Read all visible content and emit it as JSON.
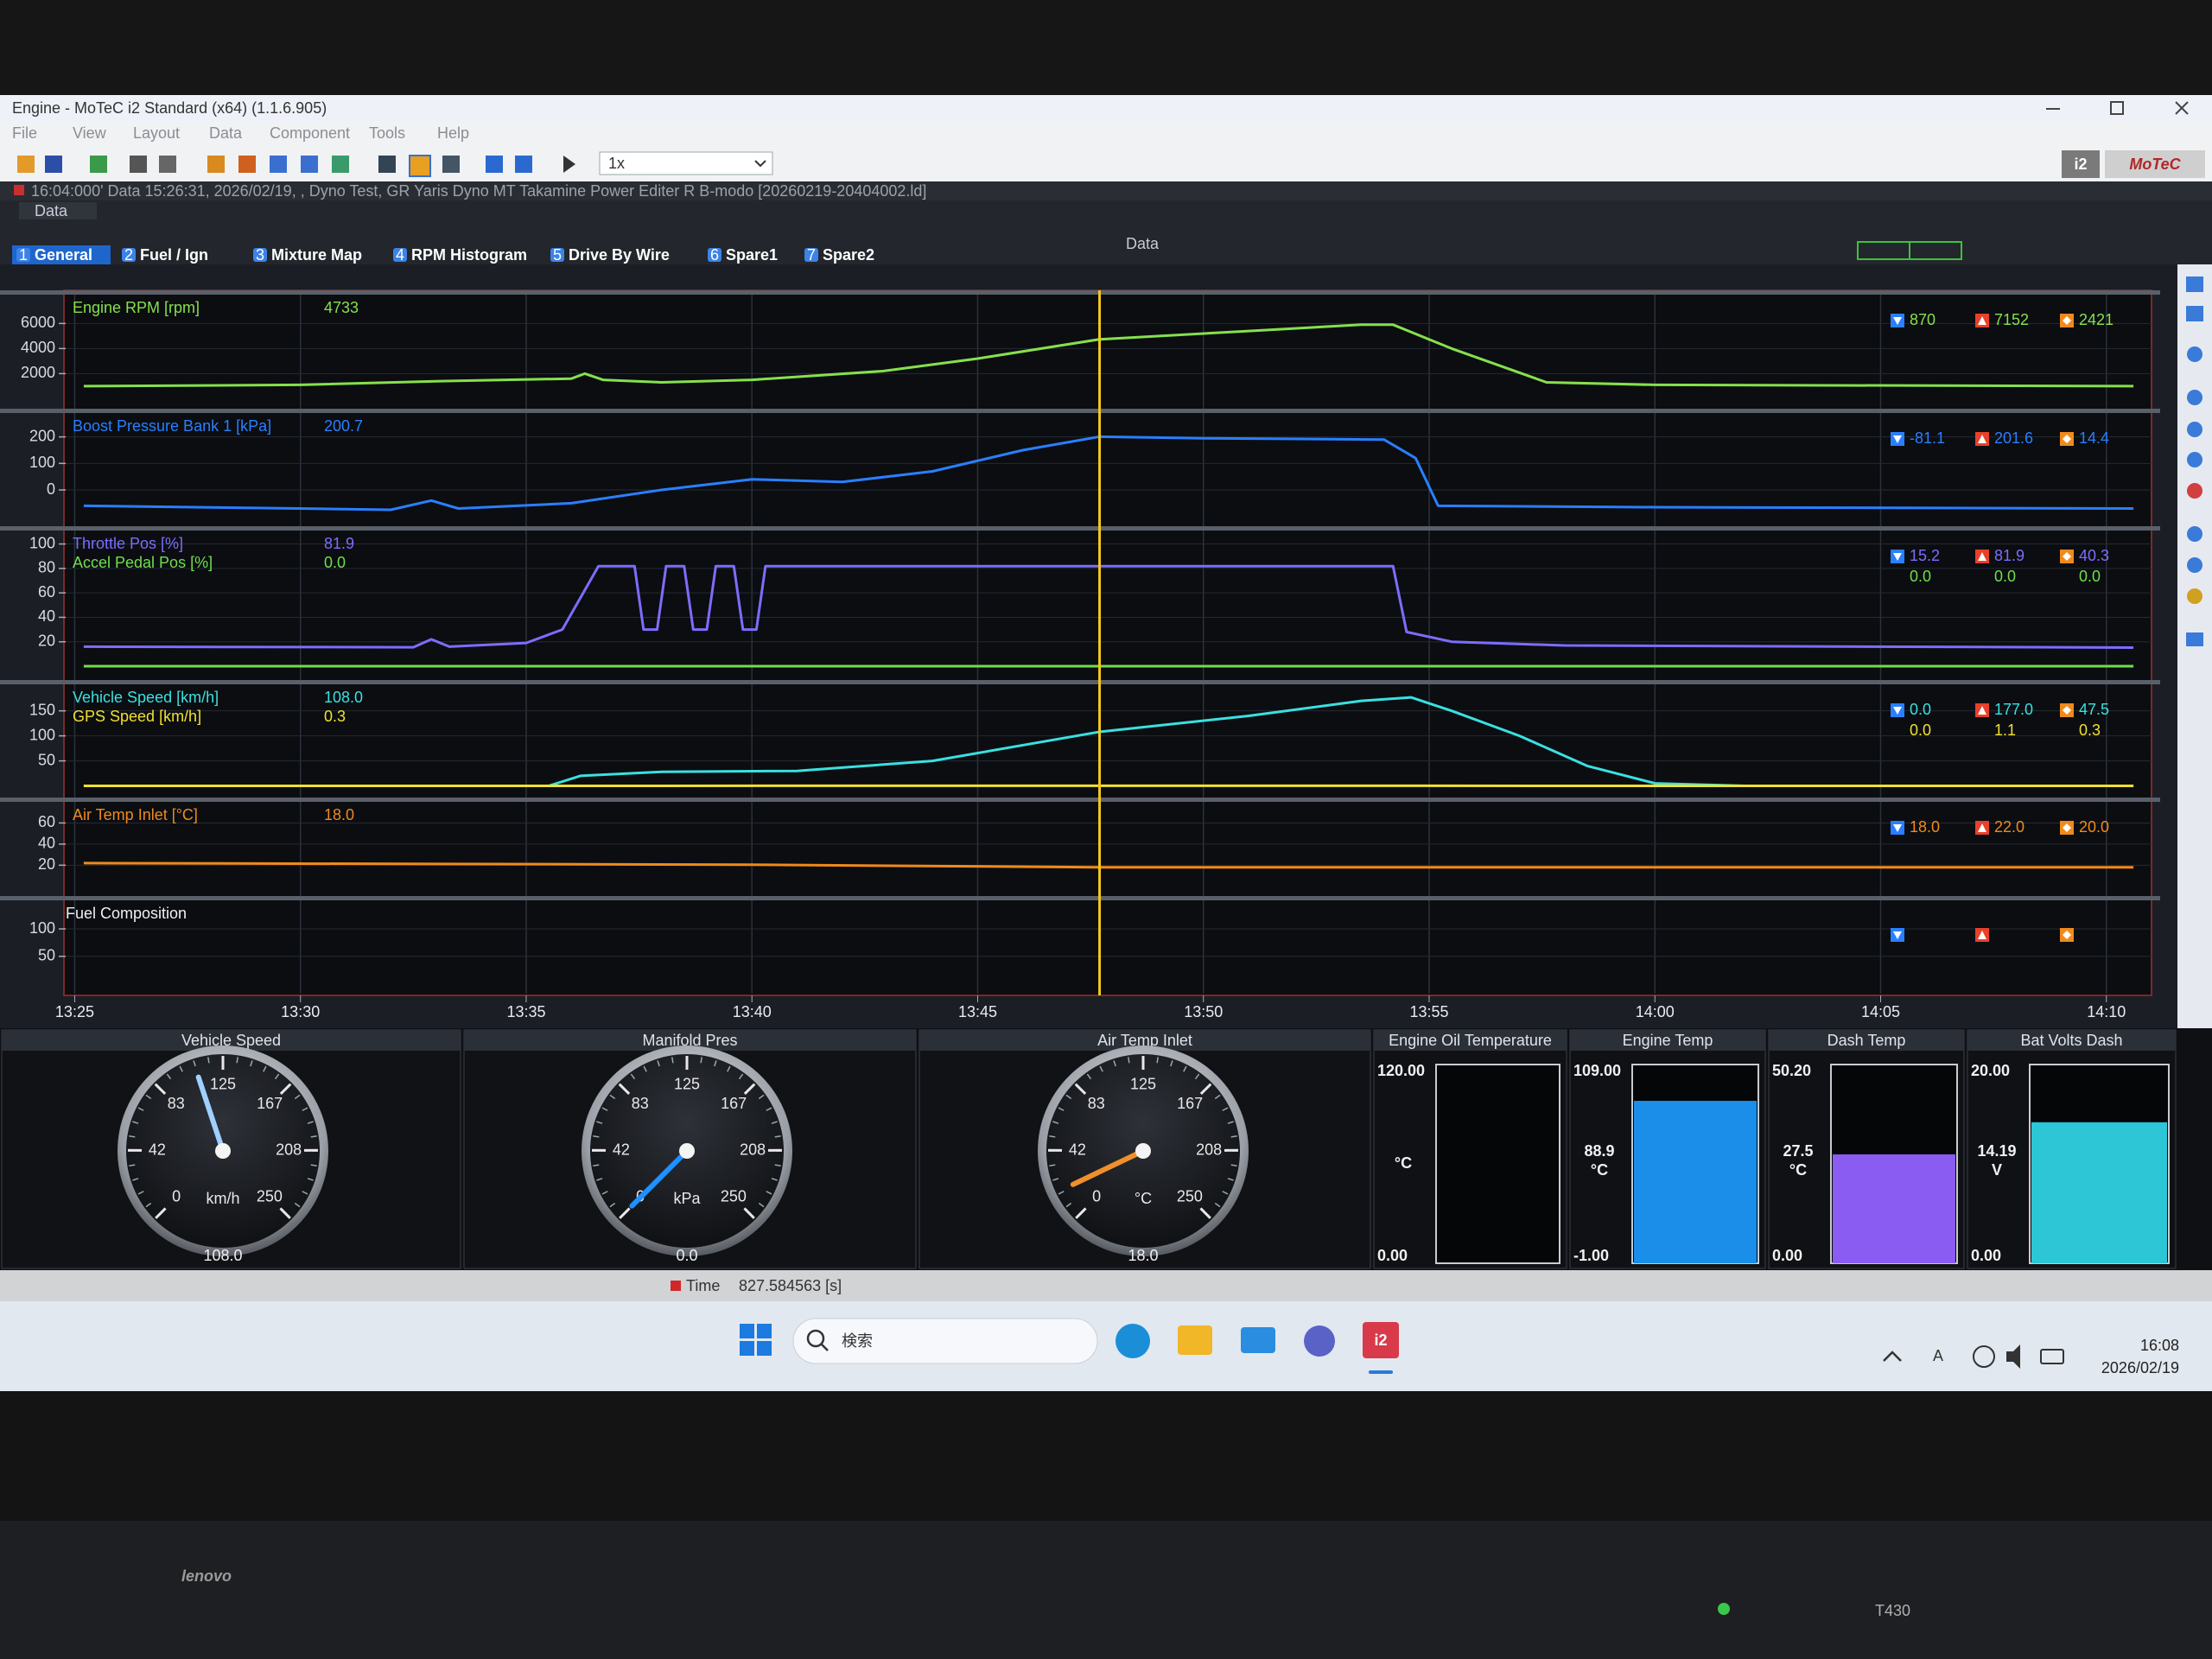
{
  "window": {
    "title": "Engine - MoTeC i2 Standard (x64) (1.1.6.905)",
    "menu": [
      "File",
      "View",
      "Layout",
      "Data",
      "Component",
      "Tools",
      "Help"
    ],
    "playback_speed": "1x",
    "logo": {
      "badge": "i2",
      "brand": "MoTeC"
    }
  },
  "status_line": "16:04:000' Data 15:26:31, 2026/02/19, , Dyno Test, GR Yaris Dyno MT Takamine Power Editer R B-modo [20260219-20404002.ld]",
  "workbook": {
    "pane_tab": "Data",
    "heading": "Data",
    "tabs": [
      {
        "number": "1",
        "label": "General"
      },
      {
        "number": "2",
        "label": "Fuel / Ign"
      },
      {
        "number": "3",
        "label": "Mixture Map"
      },
      {
        "number": "4",
        "label": "RPM Histogram"
      },
      {
        "number": "5",
        "label": "Drive By Wire"
      },
      {
        "number": "6",
        "label": "Spare1"
      },
      {
        "number": "7",
        "label": "Spare2"
      }
    ]
  },
  "chart_data": {
    "type": "line",
    "xlim": [
      804.8,
      851
    ],
    "xticks": [
      {
        "value": 805,
        "label": "13:25"
      },
      {
        "value": 810,
        "label": "13:30"
      },
      {
        "value": 815,
        "label": "13:35"
      },
      {
        "value": 820,
        "label": "13:40"
      },
      {
        "value": 825,
        "label": "13:45"
      },
      {
        "value": 830,
        "label": "13:50"
      },
      {
        "value": 835,
        "label": "13:55"
      },
      {
        "value": 840,
        "label": "14:00"
      },
      {
        "value": 845,
        "label": "14:05"
      },
      {
        "value": 850,
        "label": "14:10"
      }
    ],
    "cursor_x": 827.7,
    "panels": [
      {
        "ylim": [
          -800,
          8300
        ],
        "yticks": [
          2000,
          4000,
          6000
        ],
        "series": [
          {
            "name": "Engine RPM [rpm]",
            "color": "#86e04c",
            "value_label": "4733",
            "stats": {
              "min": "870",
              "max": "7152",
              "avg": "2421"
            },
            "x": [
              805.2,
              810,
              813.1,
              816,
              816.3,
              816.7,
              818,
              820,
              822.9,
              825,
              827.7,
              831,
              833.5,
              834.2,
              835.5,
              837.6,
              840,
              850.6
            ],
            "values": [
              1000,
              1100,
              1400,
              1600,
              2000,
              1500,
              1300,
              1500,
              2200,
              3200,
              4733,
              5400,
              5900,
              5900,
              4000,
              1300,
              1100,
              1000
            ]
          }
        ]
      },
      {
        "ylim": [
          -140,
          290
        ],
        "yticks": [
          0,
          100,
          200
        ],
        "series": [
          {
            "name": "Boost Pressure Bank 1 [kPa]",
            "color": "#2a7fff",
            "value_label": "200.7",
            "stats": {
              "min": "-81.1",
              "max": "201.6",
              "avg": "14.4"
            },
            "x": [
              805.2,
              810,
              812,
              812.9,
              813.5,
              816,
              818,
              820,
              822,
              824,
              826,
              827.7,
              830,
              834,
              834.7,
              835.2,
              840,
              850.6
            ],
            "values": [
              -60,
              -70,
              -75,
              -40,
              -70,
              -50,
              0,
              40,
              30,
              70,
              150,
              200.7,
              195,
              190,
              120,
              -60,
              -65,
              -70
            ]
          }
        ]
      },
      {
        "ylim": [
          -12,
          111
        ],
        "yticks": [
          20,
          40,
          60,
          80,
          100
        ],
        "series": [
          {
            "name": "Throttle Pos [%]",
            "color": "#7d6dff",
            "value_label": "81.9",
            "stats": {
              "min": "15.2",
              "max": "81.9",
              "avg": "40.3"
            },
            "x": [
              805.2,
              812.5,
              812.9,
              813.3,
              815,
              815.8,
              816.6,
              817.4,
              817.6,
              817.9,
              818.1,
              818.5,
              818.7,
              819,
              819.2,
              819.6,
              819.8,
              820.1,
              820.3,
              834.2,
              834.5,
              835.5,
              838,
              850.6
            ],
            "values": [
              16,
              15.5,
              22,
              16,
              19,
              30,
              81.9,
              81.9,
              30,
              30,
              81.9,
              81.9,
              30,
              30,
              81.9,
              81.9,
              30,
              30,
              81.9,
              81.9,
              28,
              20,
              17,
              15.2
            ]
          },
          {
            "name": "Accel Pedal Pos [%]",
            "color": "#6ee04a",
            "value_label": "0.0",
            "stats": {
              "min": "0.0",
              "max": "0.0",
              "avg": "0.0"
            },
            "x": [
              805.2,
              850.6
            ],
            "values": [
              0,
              0
            ]
          }
        ]
      },
      {
        "ylim": [
          -25,
          203
        ],
        "yticks": [
          50,
          100,
          150
        ],
        "series": [
          {
            "name": "Vehicle Speed [km/h]",
            "color": "#3ae0e0",
            "value_label": "108.0",
            "stats": {
              "min": "0.0",
              "max": "177.0",
              "avg": "47.5"
            },
            "x": [
              805.2,
              815.5,
              816.2,
              818,
              821,
              824,
              827.7,
              831,
              833.5,
              834.6,
              835.5,
              837,
              838.5,
              840,
              842,
              850.6
            ],
            "values": [
              0,
              0,
              20,
              28,
              30,
              50,
              108,
              140,
              170,
              177,
              150,
              100,
              40,
              5,
              0,
              0
            ]
          },
          {
            "name": "GPS Speed [km/h]",
            "color": "#f0e030",
            "value_label": "0.3",
            "stats": {
              "min": "0.0",
              "max": "1.1",
              "avg": "0.3"
            },
            "x": [
              805.2,
              827.7,
              850.6
            ],
            "values": [
              0,
              0.3,
              0
            ]
          }
        ]
      },
      {
        "ylim": [
          -10,
          80
        ],
        "yticks": [
          20,
          40,
          60
        ],
        "series": [
          {
            "name": "Air Temp Inlet [°C]",
            "color": "#f08a1a",
            "value_label": "18.0",
            "stats": {
              "min": "18.0",
              "max": "22.0",
              "avg": "20.0"
            },
            "x": [
              805.2,
              820,
              827.7,
              850.6
            ],
            "values": [
              22,
              20.5,
              18,
              18
            ]
          }
        ]
      },
      {
        "title": "Fuel Composition",
        "ylim": [
          -18,
          152
        ],
        "yticks": [
          50,
          100
        ],
        "series": []
      }
    ]
  },
  "gauges": [
    {
      "title": "Vehicle Speed",
      "unit": "km/h",
      "ticks": [
        0,
        42,
        83,
        125,
        167,
        208,
        250
      ],
      "value": 108,
      "value_label": "108.0",
      "color": "#9fd0ff"
    },
    {
      "title": "Manifold Pres",
      "unit": "kPa",
      "ticks": [
        0,
        42,
        83,
        125,
        167,
        208,
        250
      ],
      "value": 0,
      "value_label": "0.0",
      "color": "#1e90ff"
    },
    {
      "title": "Air Temp Inlet",
      "unit": "°C",
      "ticks": [
        0,
        42,
        83,
        125,
        167,
        208,
        250
      ],
      "value": 18,
      "value_label": "18.0",
      "color": "#f0902a"
    }
  ],
  "bar_gauges": [
    {
      "title": "Engine Oil Temperature",
      "top": {
        "value": 120,
        "label": "120.00"
      },
      "bottom": {
        "value": 0,
        "label": "0.00"
      },
      "unit": "°C",
      "color": "#1e8fe6"
    },
    {
      "title": "Engine Temp",
      "top": {
        "value": 109,
        "label": "109.00"
      },
      "bottom": {
        "value": -1,
        "label": "-1.00"
      },
      "reading": {
        "value": 88.9,
        "label": "88.9"
      },
      "unit": "°C",
      "color": "#1a8ee8"
    },
    {
      "title": "Dash Temp",
      "top": {
        "value": 50.2,
        "label": "50.20"
      },
      "bottom": {
        "value": 0,
        "label": "0.00"
      },
      "reading": {
        "value": 27.5,
        "label": "27.5"
      },
      "unit": "°C",
      "color": "#8a5cf2"
    },
    {
      "title": "Bat Volts Dash",
      "top": {
        "value": 20,
        "label": "20.00"
      },
      "bottom": {
        "value": 0,
        "label": "0.00"
      },
      "reading": {
        "value": 14.19,
        "label": "14.19"
      },
      "unit": "V",
      "color": "#2cc6d6"
    }
  ],
  "time_readout": {
    "label": "Time",
    "value": "827.584563 [s]"
  },
  "taskbar": {
    "search": "検索",
    "ime": "A",
    "time": "16:08",
    "date": "2026/02/19"
  },
  "laptop": {
    "brand": "lenovo",
    "model": "T430"
  }
}
